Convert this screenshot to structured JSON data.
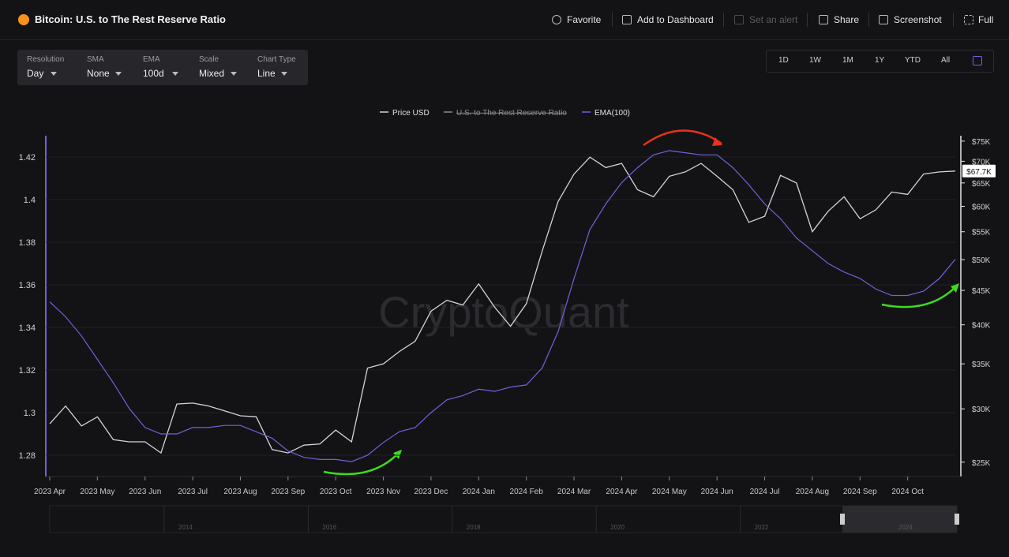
{
  "header": {
    "title": "Bitcoin: U.S. to The Rest Reserve Ratio",
    "actions": [
      "Favorite",
      "Add to Dashboard",
      "Set an alert",
      "Share",
      "Screenshot",
      "Full"
    ]
  },
  "controls": [
    {
      "label": "Resolution",
      "value": "Day"
    },
    {
      "label": "SMA",
      "value": "None"
    },
    {
      "label": "EMA",
      "value": "100d"
    },
    {
      "label": "Scale",
      "value": "Mixed"
    },
    {
      "label": "Chart Type",
      "value": "Line"
    }
  ],
  "ranges": [
    "1D",
    "1W",
    "1M",
    "1Y",
    "YTD",
    "All"
  ],
  "navigator": [
    "2014",
    "2016",
    "2018",
    "2020",
    "2022",
    "2024"
  ],
  "chart_data": {
    "type": "line",
    "watermark": "CryptoQuant",
    "categories": [
      "2023 Apr",
      null,
      null,
      "2023 May",
      null,
      null,
      "2023 Jun",
      null,
      null,
      "2023 Jul",
      null,
      null,
      "2023 Aug",
      null,
      null,
      "2023 Sep",
      null,
      null,
      "2023 Oct",
      null,
      null,
      "2023 Nov",
      null,
      null,
      "2023 Dec",
      null,
      null,
      "2024 Jan",
      null,
      null,
      "2024 Feb",
      null,
      null,
      "2024 Mar",
      null,
      null,
      "2024 Apr",
      null,
      null,
      "2024 May",
      null,
      null,
      "2024 Jun",
      null,
      null,
      "2024 Jul",
      null,
      null,
      "2024 Aug",
      null,
      null,
      "2024 Sep",
      null,
      null,
      "2024 Oct",
      null,
      null,
      null
    ],
    "series": [
      {
        "name": "Price USD",
        "color": "#d4d4d8",
        "axis": "y2",
        "last_label": "$67.7K",
        "values": [
          28500,
          30300,
          28300,
          29200,
          27000,
          26800,
          26800,
          25800,
          30500,
          30600,
          30300,
          29800,
          29300,
          29200,
          26100,
          25800,
          26500,
          26600,
          27900,
          26800,
          34500,
          35000,
          36500,
          37800,
          41900,
          43500,
          42800,
          46000,
          42500,
          39800,
          43000,
          51500,
          61000,
          67000,
          71000,
          68500,
          69500,
          63500,
          62000,
          66500,
          67500,
          69500,
          66500,
          63500,
          56800,
          58000,
          66700,
          65000,
          55000,
          59000,
          62000,
          57500,
          59300,
          63000,
          62500,
          67000,
          67500,
          67700
        ]
      },
      {
        "name": "U.S. to The Rest Reserve Ratio",
        "color": "#8a8a90",
        "hidden": true
      },
      {
        "name": "EMA(100)",
        "color": "#6f63d9",
        "values": [
          1.352,
          1.345,
          1.336,
          1.325,
          1.314,
          1.302,
          1.293,
          1.29,
          1.29,
          1.293,
          1.293,
          1.294,
          1.294,
          1.291,
          1.288,
          1.282,
          1.279,
          1.278,
          1.278,
          1.277,
          1.28,
          1.286,
          1.291,
          1.293,
          1.3,
          1.306,
          1.308,
          1.311,
          1.31,
          1.312,
          1.313,
          1.321,
          1.338,
          1.363,
          1.386,
          1.398,
          1.408,
          1.415,
          1.421,
          1.423,
          1.422,
          1.421,
          1.421,
          1.415,
          1.407,
          1.398,
          1.391,
          1.382,
          1.376,
          1.37,
          1.366,
          1.363,
          1.358,
          1.355,
          1.355,
          1.357,
          1.363,
          1.372
        ]
      }
    ],
    "ylim": [
      1.27,
      1.43
    ],
    "yticks": [
      1.28,
      1.3,
      1.32,
      1.34,
      1.36,
      1.38,
      1.4,
      1.42
    ],
    "y2lim": [
      23800,
      76400
    ],
    "y2scale": "log",
    "y2ticks": [
      {
        "value": 25000,
        "label": "$25K"
      },
      {
        "value": 30000,
        "label": "$30K"
      },
      {
        "value": 35000,
        "label": "$35K"
      },
      {
        "value": 40000,
        "label": "$40K"
      },
      {
        "value": 45000,
        "label": "$45K"
      },
      {
        "value": 50000,
        "label": "$50K"
      },
      {
        "value": 55000,
        "label": "$55K"
      },
      {
        "value": 60000,
        "label": "$60K"
      },
      {
        "value": 65000,
        "label": "$65K"
      },
      {
        "value": 70000,
        "label": "$70K"
      },
      {
        "value": 75000,
        "label": "$75K"
      }
    ],
    "grid": true,
    "legend": "top"
  }
}
